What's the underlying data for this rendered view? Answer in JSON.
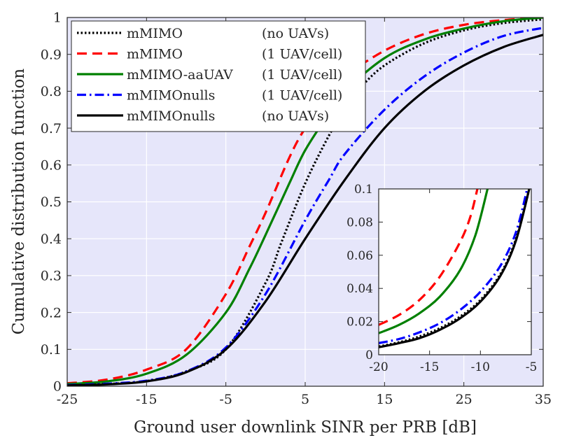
{
  "chart_data": [
    {
      "type": "line",
      "xlabel": "Ground user downlink SINR per PRB [dB]",
      "ylabel": "Cumulative distribution function",
      "xlim": [
        -25,
        35
      ],
      "ylim": [
        0,
        1
      ],
      "xticks": [
        "-25",
        "-15",
        "-5",
        "5",
        "15",
        "25",
        "35"
      ],
      "xtick_values": [
        -25,
        -15,
        -5,
        5,
        15,
        25,
        35
      ],
      "yticks": [
        "0",
        "0.1",
        "0.2",
        "0.3",
        "0.4",
        "0.5",
        "0.6",
        "0.7",
        "0.8",
        "0.9",
        "1"
      ],
      "ytick_values": [
        0,
        0.1,
        0.2,
        0.3,
        0.4,
        0.5,
        0.6,
        0.7,
        0.8,
        0.9,
        1
      ],
      "grid": true,
      "legend_position": "top-left",
      "series": [
        {
          "name": "mMIMO",
          "condition": "(no UAVs)",
          "color": "#000000",
          "style": "dotted",
          "x": [
            -25,
            -20,
            -15,
            -10,
            -5,
            0,
            2,
            5,
            8,
            10,
            12,
            15,
            20,
            25,
            30,
            35
          ],
          "y": [
            0.003,
            0.006,
            0.014,
            0.04,
            0.1,
            0.28,
            0.39,
            0.55,
            0.68,
            0.75,
            0.81,
            0.87,
            0.93,
            0.965,
            0.985,
            0.995
          ]
        },
        {
          "name": "mMIMO",
          "condition": "(1 UAV/cell)",
          "color": "#ff0000",
          "style": "dashed",
          "x": [
            -25,
            -20,
            -15,
            -10,
            -5,
            -2,
            0,
            3,
            5,
            8,
            10,
            15,
            20,
            25,
            30,
            35
          ],
          "y": [
            0.008,
            0.018,
            0.045,
            0.1,
            0.25,
            0.38,
            0.47,
            0.62,
            0.7,
            0.79,
            0.84,
            0.91,
            0.955,
            0.98,
            0.993,
            1.0
          ]
        },
        {
          "name": "mMIMO-aaUAV",
          "condition": "(1 UAV/cell)",
          "color": "#008000",
          "style": "solid",
          "x": [
            -25,
            -20,
            -15,
            -10,
            -5,
            -2,
            0,
            3,
            5,
            8,
            10,
            15,
            20,
            25,
            30,
            35
          ],
          "y": [
            0.006,
            0.013,
            0.034,
            0.085,
            0.2,
            0.32,
            0.41,
            0.55,
            0.64,
            0.74,
            0.8,
            0.89,
            0.94,
            0.97,
            0.99,
            1.0
          ]
        },
        {
          "name": "mMIMOnulls",
          "condition": "(1 UAV/cell)",
          "color": "#0000ff",
          "style": "dashdot",
          "x": [
            -25,
            -20,
            -15,
            -10,
            -5,
            0,
            5,
            8,
            10,
            15,
            20,
            25,
            30,
            35
          ],
          "y": [
            0.003,
            0.007,
            0.015,
            0.04,
            0.105,
            0.25,
            0.45,
            0.56,
            0.63,
            0.75,
            0.84,
            0.905,
            0.95,
            0.972
          ]
        },
        {
          "name": "mMIMOnulls",
          "condition": "(no UAVs)",
          "color": "#000000",
          "style": "solid",
          "x": [
            -25,
            -20,
            -15,
            -10,
            -5,
            0,
            5,
            10,
            15,
            20,
            25,
            30,
            35
          ],
          "y": [
            0.002,
            0.005,
            0.013,
            0.038,
            0.1,
            0.23,
            0.4,
            0.56,
            0.7,
            0.8,
            0.87,
            0.92,
            0.953
          ]
        }
      ]
    },
    {
      "type": "line",
      "xlim": [
        -20,
        -5
      ],
      "ylim": [
        0,
        0.1
      ],
      "xticks": [
        "-20",
        "-15",
        "-10",
        "-5"
      ],
      "xtick_values": [
        -20,
        -15,
        -10,
        -5
      ],
      "yticks": [
        "0",
        "0.02",
        "0.04",
        "0.06",
        "0.08",
        "0.1"
      ],
      "ytick_values": [
        0,
        0.02,
        0.04,
        0.06,
        0.08,
        0.1
      ],
      "grid": false,
      "series": [
        {
          "color": "#000000",
          "style": "dotted",
          "x": [
            -20,
            -18,
            -16,
            -14,
            -12,
            -10,
            -8,
            -6.5,
            -5.2
          ],
          "y": [
            0.005,
            0.0075,
            0.011,
            0.016,
            0.023,
            0.033,
            0.049,
            0.07,
            0.1
          ]
        },
        {
          "color": "#ff0000",
          "style": "dashed",
          "x": [
            -20,
            -18,
            -16,
            -14,
            -12,
            -11,
            -10.3
          ],
          "y": [
            0.018,
            0.024,
            0.033,
            0.047,
            0.068,
            0.083,
            0.1
          ]
        },
        {
          "color": "#008000",
          "style": "solid",
          "x": [
            -20,
            -18,
            -16,
            -14,
            -12,
            -10.5,
            -9.3
          ],
          "y": [
            0.013,
            0.018,
            0.025,
            0.035,
            0.051,
            0.072,
            0.1
          ]
        },
        {
          "color": "#0000ff",
          "style": "dashdot",
          "x": [
            -20,
            -18,
            -16,
            -14,
            -12,
            -10,
            -8,
            -6.5,
            -5.4
          ],
          "y": [
            0.007,
            0.0095,
            0.0135,
            0.019,
            0.027,
            0.038,
            0.054,
            0.074,
            0.1
          ]
        },
        {
          "color": "#000000",
          "style": "solid",
          "x": [
            -20,
            -18,
            -16,
            -14,
            -12,
            -10,
            -8,
            -6.5,
            -5.2
          ],
          "y": [
            0.0045,
            0.007,
            0.01,
            0.015,
            0.022,
            0.032,
            0.048,
            0.069,
            0.1
          ]
        }
      ]
    }
  ]
}
